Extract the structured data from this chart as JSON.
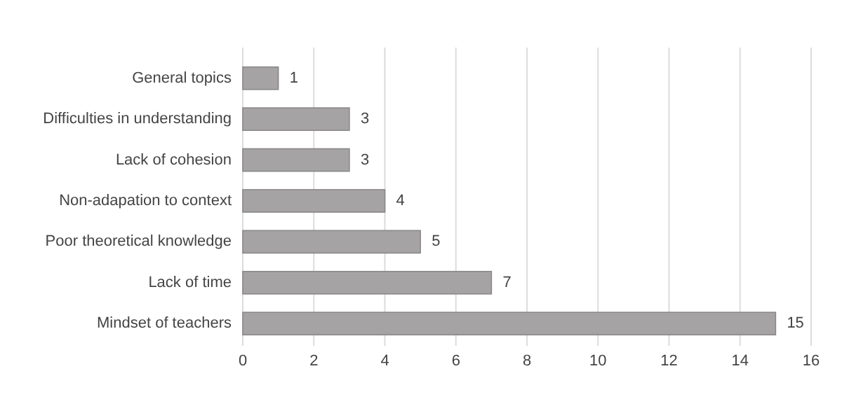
{
  "chart_data": {
    "type": "bar",
    "orientation": "horizontal",
    "categories": [
      "General topics",
      "Difficulties in understanding",
      "Lack of cohesion",
      "Non-adapation to context",
      "Poor theoretical knowledge",
      "Lack of time",
      "Mindset of teachers"
    ],
    "values": [
      1,
      3,
      3,
      4,
      5,
      7,
      15
    ],
    "color": "#a5a3a3",
    "xlim": [
      0,
      16
    ],
    "xticks": [
      0,
      2,
      4,
      6,
      8,
      10,
      12,
      14,
      16
    ],
    "grid": "x",
    "data_labels": true
  }
}
